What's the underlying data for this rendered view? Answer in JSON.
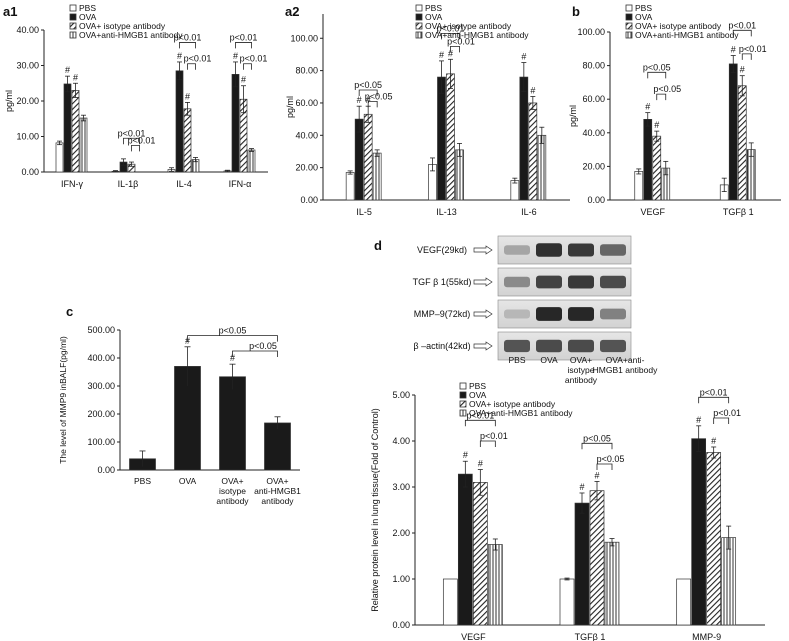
{
  "series_names": [
    "PBS",
    "OVA",
    "OVA+ isotype antibody",
    "OVA+anti-HMGB1 antibody"
  ],
  "colors": {
    "pbs": "#ffffff",
    "ova": "#1a1a1a",
    "iso": "#9a9a9a",
    "anti": "#d0d0d0",
    "stroke": "#333333"
  },
  "chart_data": [
    {
      "id": "a1",
      "panel_label": "a1",
      "type": "bar",
      "ylabel": "pg/ml",
      "ylim": [
        0,
        40
      ],
      "yticks": [
        "0.00",
        "10.00",
        "20.00",
        "30.00",
        "40.00"
      ],
      "categories": [
        "IFN-γ",
        "IL-1β",
        "IL-4",
        "IFN-α"
      ],
      "series": [
        {
          "name": "PBS",
          "values": [
            8.2,
            0.2,
            0.7,
            0.3
          ],
          "errors": [
            0.5,
            0.2,
            0.5,
            0.2
          ]
        },
        {
          "name": "OVA",
          "values": [
            24.8,
            2.8,
            28.5,
            27.5
          ],
          "errors": [
            2.2,
            0.9,
            2.5,
            3.5
          ]
        },
        {
          "name": "OVA+ isotype antibody",
          "values": [
            23.0,
            2.2,
            17.8,
            20.5
          ],
          "errors": [
            2.0,
            0.6,
            1.8,
            3.8
          ]
        },
        {
          "name": "OVA+anti-HMGB1 antibody",
          "values": [
            15.2,
            0.0,
            3.5,
            6.2
          ],
          "errors": [
            0.8,
            0.0,
            0.6,
            0.4
          ]
        }
      ],
      "hash_marks": [
        [
          0,
          1
        ],
        [
          0,
          2
        ],
        [
          2,
          1
        ],
        [
          2,
          2
        ],
        [
          3,
          1
        ],
        [
          3,
          2
        ]
      ],
      "annotations": [
        {
          "label": "p<0.01",
          "cat": 1,
          "from": 1,
          "to": 3,
          "y": 9.5
        },
        {
          "label": "p<0.01",
          "cat": 1,
          "from": 2,
          "to": 3,
          "y": 7.5
        },
        {
          "label": "p<0.01",
          "cat": 2,
          "from": 1,
          "to": 3,
          "y": 36.5
        },
        {
          "label": "p<0.01",
          "cat": 2,
          "from": 2,
          "to": 3,
          "y": 30.5
        },
        {
          "label": "p<0.01",
          "cat": 3,
          "from": 1,
          "to": 3,
          "y": 36.5
        },
        {
          "label": "p<0.01",
          "cat": 3,
          "from": 2,
          "to": 3,
          "y": 30.5
        }
      ]
    },
    {
      "id": "a2",
      "panel_label": "a2",
      "type": "bar",
      "ylabel": "pg/ml",
      "ylim": [
        0,
        115
      ],
      "yticks": [
        "0.00",
        "20.00",
        "40.00",
        "60.00",
        "80.00",
        "100.00"
      ],
      "categories": [
        "IL-5",
        "IL-13",
        "IL-6"
      ],
      "series": [
        {
          "name": "PBS",
          "values": [
            17,
            22,
            12
          ],
          "errors": [
            1,
            4,
            1.5
          ]
        },
        {
          "name": "OVA",
          "values": [
            50,
            76,
            76
          ],
          "errors": [
            8,
            10,
            9
          ]
        },
        {
          "name": "OVA+ isotype antibody",
          "values": [
            53,
            78,
            60
          ],
          "errors": [
            5,
            9,
            4
          ]
        },
        {
          "name": "OVA+anti-HMGB1 antibody",
          "values": [
            29,
            31,
            40
          ],
          "errors": [
            2,
            4,
            5
          ]
        }
      ],
      "hash_marks": [
        [
          0,
          1
        ],
        [
          0,
          2
        ],
        [
          1,
          1
        ],
        [
          1,
          2
        ],
        [
          2,
          1
        ],
        [
          2,
          2
        ]
      ],
      "annotations": [
        {
          "label": "p<0.05",
          "cat": 0,
          "from": 1,
          "to": 3,
          "y": 68
        },
        {
          "label": "p<0.05",
          "cat": 0,
          "from": 2,
          "to": 3,
          "y": 61
        },
        {
          "label": "p<0.01",
          "cat": 1,
          "from": 1,
          "to": 3,
          "y": 103
        },
        {
          "label": "p<0.01",
          "cat": 1,
          "from": 2,
          "to": 3,
          "y": 95
        }
      ]
    },
    {
      "id": "b",
      "panel_label": "b",
      "type": "bar",
      "ylabel": "pg/ml",
      "ylim": [
        0,
        100
      ],
      "yticks": [
        "0.00",
        "20.00",
        "40.00",
        "60.00",
        "80.00",
        "100.00"
      ],
      "categories": [
        "VEGF",
        "TGFβ 1"
      ],
      "series": [
        {
          "name": "PBS",
          "values": [
            17,
            9
          ],
          "errors": [
            1.5,
            4
          ]
        },
        {
          "name": "OVA",
          "values": [
            48,
            81
          ],
          "errors": [
            4,
            5
          ]
        },
        {
          "name": "OVA+ isotype antibody",
          "values": [
            38,
            68
          ],
          "errors": [
            3,
            6
          ]
        },
        {
          "name": "OVA+anti-HMGB1 antibody",
          "values": [
            19,
            30
          ],
          "errors": [
            4,
            4
          ]
        }
      ],
      "hash_marks": [
        [
          0,
          1
        ],
        [
          0,
          2
        ],
        [
          1,
          1
        ],
        [
          1,
          2
        ]
      ],
      "annotations": [
        {
          "label": "p<0.05",
          "cat": 0,
          "from": 1,
          "to": 3,
          "y": 76
        },
        {
          "label": "p<0.05",
          "cat": 0,
          "from": 2,
          "to": 3,
          "y": 63
        },
        {
          "label": "p<0.01",
          "cat": 1,
          "from": 1,
          "to": 3,
          "y": 101
        },
        {
          "label": "p<0.01",
          "cat": 1,
          "from": 2,
          "to": 3,
          "y": 87
        }
      ]
    },
    {
      "id": "c",
      "panel_label": "c",
      "type": "bar",
      "ylabel": "The level of MMP9 inBALF(pg/ml)",
      "ylim": [
        0,
        500
      ],
      "yticks": [
        "0.00",
        "100.00",
        "200.00",
        "300.00",
        "400.00",
        "500.00"
      ],
      "categories": [
        "PBS",
        "OVA",
        "OVA+ isotype antibody",
        "OVA+ anti-HMGB1 antibody"
      ],
      "category_lines": [
        [
          "PBS"
        ],
        [
          "OVA"
        ],
        [
          "OVA+",
          "isotype",
          "antibody"
        ],
        [
          "OVA+",
          "anti-HMGB1",
          "antibody"
        ]
      ],
      "values": [
        40,
        370,
        333,
        168
      ],
      "errors": [
        28,
        70,
        45,
        22
      ],
      "fills": [
        "ova",
        "ova",
        "ova",
        "ova"
      ],
      "hash_marks": [
        1,
        2
      ],
      "annotations": [
        {
          "label": "p<0.05",
          "from": 1,
          "to": 3,
          "y": 480
        },
        {
          "label": "p<0.05",
          "from": 2,
          "to": 3,
          "y": 425
        }
      ]
    },
    {
      "id": "d",
      "panel_label": "d",
      "type": "bar",
      "ylabel": "Relative protein level in lung tissue(Fold of Control)",
      "ylim": [
        0,
        5
      ],
      "yticks": [
        "0.00",
        "1.00",
        "2.00",
        "3.00",
        "4.00",
        "5.00"
      ],
      "categories": [
        "VEGF",
        "TGFβ 1",
        "MMP-9"
      ],
      "series": [
        {
          "name": "PBS",
          "values": [
            1.0,
            1.0,
            1.0
          ],
          "errors": [
            0.0,
            0.02,
            0.0
          ]
        },
        {
          "name": "OVA",
          "values": [
            3.28,
            2.65,
            4.05
          ],
          "errors": [
            0.28,
            0.22,
            0.28
          ]
        },
        {
          "name": "OVA+ isotype antibody",
          "values": [
            3.1,
            2.92,
            3.75
          ],
          "errors": [
            0.28,
            0.2,
            0.12
          ]
        },
        {
          "name": "OVA+anti-HMGB1 antibody",
          "values": [
            1.75,
            1.8,
            1.9
          ],
          "errors": [
            0.12,
            0.08,
            0.25
          ]
        }
      ],
      "hash_marks": [
        [
          0,
          1
        ],
        [
          0,
          2
        ],
        [
          1,
          1
        ],
        [
          1,
          2
        ],
        [
          2,
          1
        ],
        [
          2,
          2
        ]
      ],
      "annotations": [
        {
          "label": "p<0.01",
          "cat": 0,
          "from": 1,
          "to": 3,
          "y": 4.45
        },
        {
          "label": "p<0.01",
          "cat": 0,
          "from": 2,
          "to": 3,
          "y": 4.0
        },
        {
          "label": "p<0.05",
          "cat": 1,
          "from": 1,
          "to": 3,
          "y": 3.95
        },
        {
          "label": "p<0.05",
          "cat": 1,
          "from": 2,
          "to": 3,
          "y": 3.5
        },
        {
          "label": "p<0.01",
          "cat": 2,
          "from": 1,
          "to": 3,
          "y": 4.95
        },
        {
          "label": "p<0.01",
          "cat": 2,
          "from": 2,
          "to": 3,
          "y": 4.5
        }
      ]
    }
  ],
  "western_blot": {
    "rows": [
      "VEGF(29kd)",
      "TGF β 1(55kd)",
      "MMP–9(72kd)",
      "β –actin(42kd)"
    ],
    "lanes": [
      "PBS",
      "OVA",
      "OVA+ isotype antibody",
      "OVA+anti- HMGB1 antibody"
    ],
    "lane_lines": [
      [
        "PBS"
      ],
      [
        "OVA"
      ],
      [
        "OVA+",
        "isotype",
        "antibody"
      ],
      [
        "OVA+anti-",
        "HMGB1 antibody"
      ]
    ],
    "intensities": [
      [
        0.25,
        0.9,
        0.85,
        0.6
      ],
      [
        0.4,
        0.8,
        0.85,
        0.75
      ],
      [
        0.15,
        0.95,
        0.95,
        0.45
      ],
      [
        0.7,
        0.75,
        0.75,
        0.7
      ]
    ]
  }
}
